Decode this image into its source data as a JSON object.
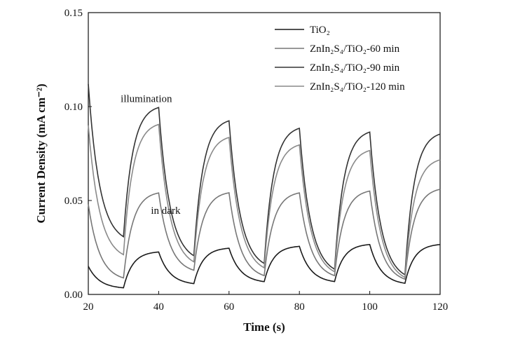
{
  "chart_data": {
    "type": "line",
    "title": "",
    "xlabel": "Time (s)",
    "ylabel": "Current Density (mA cm⁻²)",
    "xlim": [
      20,
      120
    ],
    "ylim": [
      0,
      0.15
    ],
    "x_ticks": [
      "20",
      "40",
      "60",
      "80",
      "100",
      "120"
    ],
    "y_ticks": [
      "0.00",
      "0.05",
      "0.10",
      "0.15"
    ],
    "grid": false,
    "legend_position": "top-right",
    "cycle": {
      "light_on": [
        30,
        50,
        70,
        90,
        110
      ],
      "light_off": [
        40,
        60,
        80,
        100
      ]
    },
    "series": [
      {
        "name": "TiO₂",
        "color": "#1a1a1a",
        "start": 0.015,
        "dark_end": [
          0.003,
          0.005,
          0.006,
          0.006,
          0.005
        ],
        "light_end": [
          0.023,
          0.025,
          0.026,
          0.027,
          0.027
        ]
      },
      {
        "name": "ZnIn₂S₄/TiO₂-60 min",
        "color": "#777777",
        "start": 0.048,
        "dark_end": [
          0.007,
          0.011,
          0.008,
          0.008,
          0.006
        ],
        "light_end": [
          0.055,
          0.055,
          0.055,
          0.056,
          0.057
        ]
      },
      {
        "name": "ZnIn₂S₄/TiO₂-90 min",
        "color": "#333333",
        "start": 0.112,
        "dark_end": [
          0.027,
          0.017,
          0.013,
          0.01,
          0.007
        ],
        "light_end": [
          0.101,
          0.094,
          0.09,
          0.088,
          0.087
        ]
      },
      {
        "name": "ZnIn₂S₄/TiO₂-120 min",
        "color": "#8a8a8a",
        "start": 0.09,
        "dark_end": [
          0.018,
          0.014,
          0.011,
          0.009,
          0.006
        ],
        "light_end": [
          0.092,
          0.085,
          0.081,
          0.078,
          0.073
        ]
      }
    ],
    "annotations": [
      {
        "text": "illumination",
        "x": 36.5,
        "y": 0.1025
      },
      {
        "text": "in dark",
        "x": 42,
        "y": 0.043
      }
    ]
  }
}
